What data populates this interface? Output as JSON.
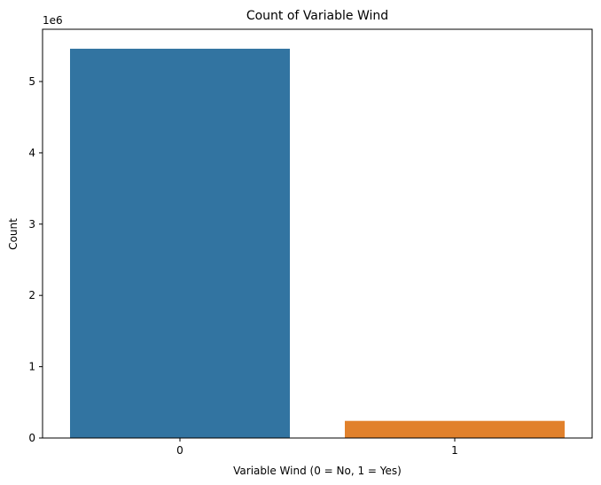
{
  "chart_data": {
    "type": "bar",
    "title": "Count of Variable Wind",
    "xlabel": "Variable Wind (0 = No, 1 = Yes)",
    "ylabel": "Count",
    "y_offset_label": "1e6",
    "categories": [
      "0",
      "1"
    ],
    "values": [
      5460000,
      240000
    ],
    "ylim": [
      0,
      5733000
    ],
    "yticks": [
      0,
      1000000,
      2000000,
      3000000,
      4000000,
      5000000
    ],
    "ytick_labels": [
      "0",
      "1",
      "2",
      "3",
      "4",
      "5"
    ],
    "grid": false,
    "legend": "none",
    "colors": [
      "#3274a1",
      "#e1812c"
    ]
  }
}
